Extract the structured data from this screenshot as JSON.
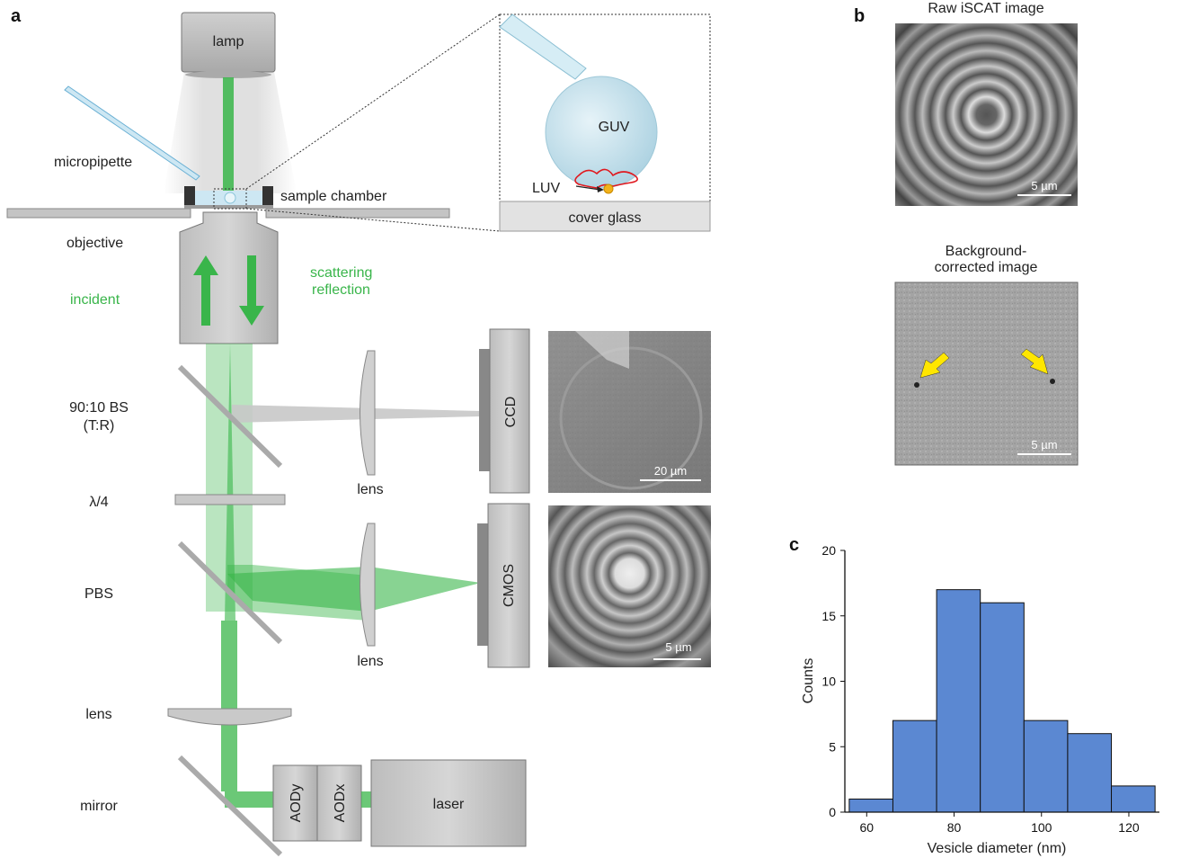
{
  "panels": {
    "a": "a",
    "b": "b",
    "c": "c"
  },
  "setup_labels": {
    "lamp": "lamp",
    "micropipette": "micropipette",
    "sample_chamber": "sample chamber",
    "objective": "objective",
    "incident": "incident",
    "scattering": "scattering",
    "reflection": "reflection",
    "bs_line1": "90:10 BS",
    "bs_line2": "(T:R)",
    "quarter_wave": "λ/4",
    "pbs": "PBS",
    "lens_bottom": "lens",
    "mirror": "mirror",
    "lens_ccd": "lens",
    "lens_cmos": "lens",
    "ccd": "CCD",
    "cmos": "CMOS",
    "aody": "AODy",
    "aodx": "AODx",
    "laser": "laser"
  },
  "inset": {
    "guv": "GUV",
    "luv": "LUV",
    "cover_glass": "cover glass"
  },
  "images": {
    "ccd_scale": "20 µm",
    "cmos_scale": "5 µm",
    "raw_title": "Raw iSCAT image",
    "raw_scale": "5 µm",
    "bg_title_line1": "Background-",
    "bg_title_line2": "corrected image",
    "bg_scale": "5 µm"
  },
  "colors": {
    "beam": "#39b54a",
    "bar": "#5b88d2",
    "arrow": "#ffe600",
    "guv": "#bcdde9"
  },
  "chart_data": {
    "type": "bar",
    "xlabel": "Vesicle diameter (nm)",
    "ylabel": "Counts",
    "xlim": [
      55,
      127
    ],
    "ylim": [
      0,
      20
    ],
    "xticks": [
      60,
      80,
      100,
      120
    ],
    "yticks": [
      0,
      5,
      10,
      15,
      20
    ],
    "bins": [
      {
        "x0": 56,
        "x1": 66,
        "count": 1
      },
      {
        "x0": 66,
        "x1": 76,
        "count": 7
      },
      {
        "x0": 76,
        "x1": 86,
        "count": 17
      },
      {
        "x0": 86,
        "x1": 96,
        "count": 16
      },
      {
        "x0": 96,
        "x1": 106,
        "count": 7
      },
      {
        "x0": 106,
        "x1": 116,
        "count": 6
      },
      {
        "x0": 116,
        "x1": 126,
        "count": 2
      }
    ]
  }
}
